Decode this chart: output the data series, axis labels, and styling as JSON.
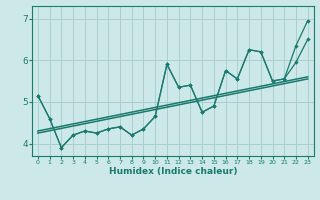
{
  "xlabel": "Humidex (Indice chaleur)",
  "bg_color": "#cce8e8",
  "line_color": "#1a7a6e",
  "grid_color": "#aacece",
  "xlim": [
    -0.5,
    23.5
  ],
  "ylim": [
    3.7,
    7.3
  ],
  "xticks": [
    0,
    1,
    2,
    3,
    4,
    5,
    6,
    7,
    8,
    9,
    10,
    11,
    12,
    13,
    14,
    15,
    16,
    17,
    18,
    19,
    20,
    21,
    22,
    23
  ],
  "yticks": [
    4,
    5,
    6,
    7
  ],
  "series1_x": [
    0,
    1,
    2,
    3,
    4,
    5,
    6,
    7,
    8,
    9,
    10,
    11,
    12,
    13,
    14,
    15,
    16,
    17,
    18,
    19,
    20,
    21,
    22,
    23
  ],
  "series1_y": [
    5.15,
    4.6,
    3.9,
    4.2,
    4.3,
    4.25,
    4.35,
    4.4,
    4.2,
    4.35,
    4.65,
    5.9,
    5.35,
    5.4,
    4.75,
    4.9,
    5.75,
    5.55,
    6.25,
    6.2,
    5.5,
    5.55,
    5.95,
    6.5
  ],
  "series2_x": [
    0,
    1,
    2,
    3,
    4,
    5,
    6,
    7,
    8,
    9,
    10,
    11,
    12,
    13,
    14,
    15,
    16,
    17,
    18,
    19,
    20,
    21,
    22,
    23
  ],
  "series2_y": [
    5.15,
    4.6,
    3.9,
    4.2,
    4.3,
    4.25,
    4.35,
    4.4,
    4.2,
    4.35,
    4.65,
    5.9,
    5.35,
    5.4,
    4.75,
    4.9,
    5.75,
    5.55,
    6.25,
    6.2,
    5.5,
    5.55,
    6.35,
    6.95
  ],
  "trend1_x": [
    0,
    23
  ],
  "trend1_y": [
    4.25,
    5.55
  ],
  "trend2_x": [
    0,
    23
  ],
  "trend2_y": [
    4.3,
    5.6
  ]
}
